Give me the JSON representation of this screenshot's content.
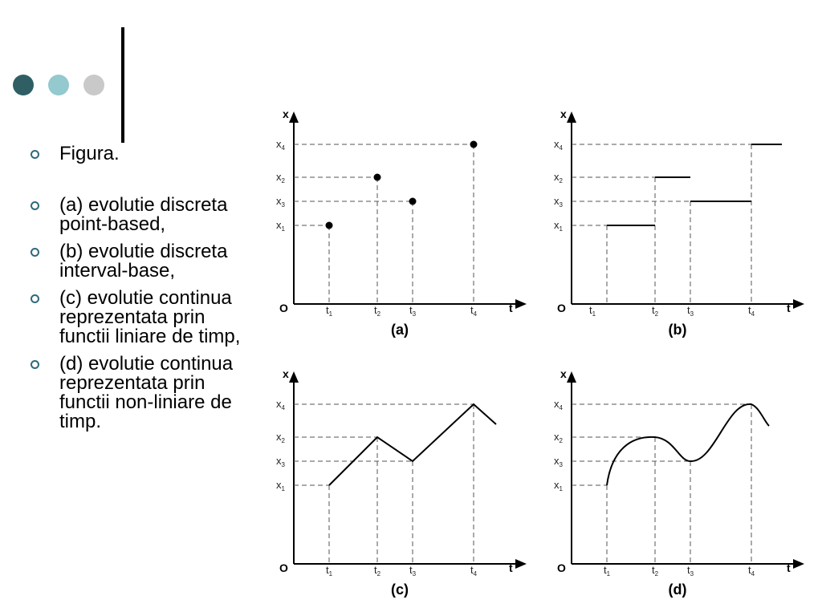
{
  "decor": {
    "dot_colors": [
      "#2f5f64",
      "#93c9cf",
      "#c9c9c9"
    ],
    "bullet_color": "#2e6a7a"
  },
  "bullets": [
    "Figura.",
    "(a) evolutie discreta point-based,",
    "(b) evolutie discreta interval-base,",
    "(c) evolutie continua reprezentata prin functii liniare de timp,",
    "(d) evolutie continua reprezentata prin functii non-liniare de timp."
  ],
  "figure": {
    "origin_label": "O",
    "t_axis_label": "t",
    "x_axis_label": "x",
    "x_labels": [
      {
        "base": "x",
        "sub": "1"
      },
      {
        "base": "x",
        "sub": "2"
      },
      {
        "base": "x",
        "sub": "3"
      },
      {
        "base": "x",
        "sub": "4"
      }
    ],
    "t_labels": [
      {
        "base": "t",
        "sub": "1"
      },
      {
        "base": "t",
        "sub": "2"
      },
      {
        "base": "t",
        "sub": "3"
      },
      {
        "base": "t",
        "sub": "4"
      }
    ],
    "panels": [
      {
        "id": "a",
        "caption": "(a)",
        "kind": "points"
      },
      {
        "id": "b",
        "caption": "(b)",
        "kind": "intervals"
      },
      {
        "id": "c",
        "caption": "(c)",
        "kind": "linear"
      },
      {
        "id": "d",
        "caption": "(d)",
        "kind": "curve"
      }
    ],
    "levels": {
      "x1": 1,
      "x2": 3,
      "x3": 2,
      "x4": 4
    },
    "points": [
      {
        "t": "t1",
        "x": "x1"
      },
      {
        "t": "t2",
        "x": "x2"
      },
      {
        "t": "t3",
        "x": "x3"
      },
      {
        "t": "t4",
        "x": "x4"
      }
    ],
    "intervals": [
      {
        "from": "t1",
        "to": "t2",
        "x": "x1"
      },
      {
        "from": "t2",
        "to": "t3",
        "x": "x2"
      },
      {
        "from": "t3",
        "to": "t4",
        "x": "x3"
      },
      {
        "from": "t4",
        "to": "end",
        "x": "x4"
      }
    ]
  }
}
